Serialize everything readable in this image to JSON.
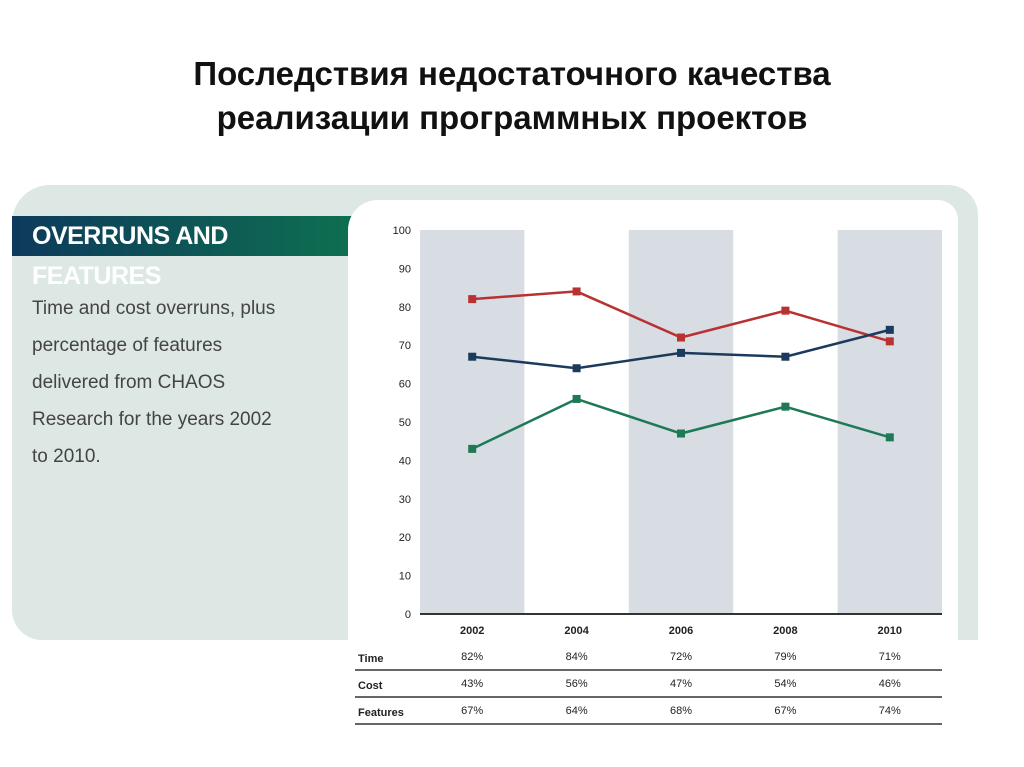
{
  "title_lines": [
    "Последствия недостаточного качества",
    "реализации программных проектов"
  ],
  "header": "OVERRUNS AND FEATURES",
  "description": "Time and cost overruns, plus percentage of features delivered from CHAOS Research for the years 2002 to 2010.",
  "chart_data": {
    "type": "line",
    "categories": [
      "2002",
      "2004",
      "2006",
      "2008",
      "2010"
    ],
    "ylim": [
      0,
      100
    ],
    "yticks": [
      0,
      10,
      20,
      30,
      40,
      50,
      60,
      70,
      80,
      90,
      100
    ],
    "grid": "alternating shaded columns",
    "series": [
      {
        "name": "Time",
        "color": "#b83232",
        "values": [
          82,
          84,
          72,
          79,
          71
        ],
        "labels": [
          "82%",
          "84%",
          "72%",
          "79%",
          "71%"
        ]
      },
      {
        "name": "Cost",
        "color": "#1e7a55",
        "values": [
          43,
          56,
          47,
          54,
          46
        ],
        "labels": [
          "43%",
          "56%",
          "47%",
          "54%",
          "46%"
        ]
      },
      {
        "name": "Features",
        "color": "#1b3a5c",
        "values": [
          67,
          64,
          68,
          67,
          74
        ],
        "labels": [
          "67%",
          "64%",
          "68%",
          "67%",
          "74%"
        ]
      }
    ]
  }
}
